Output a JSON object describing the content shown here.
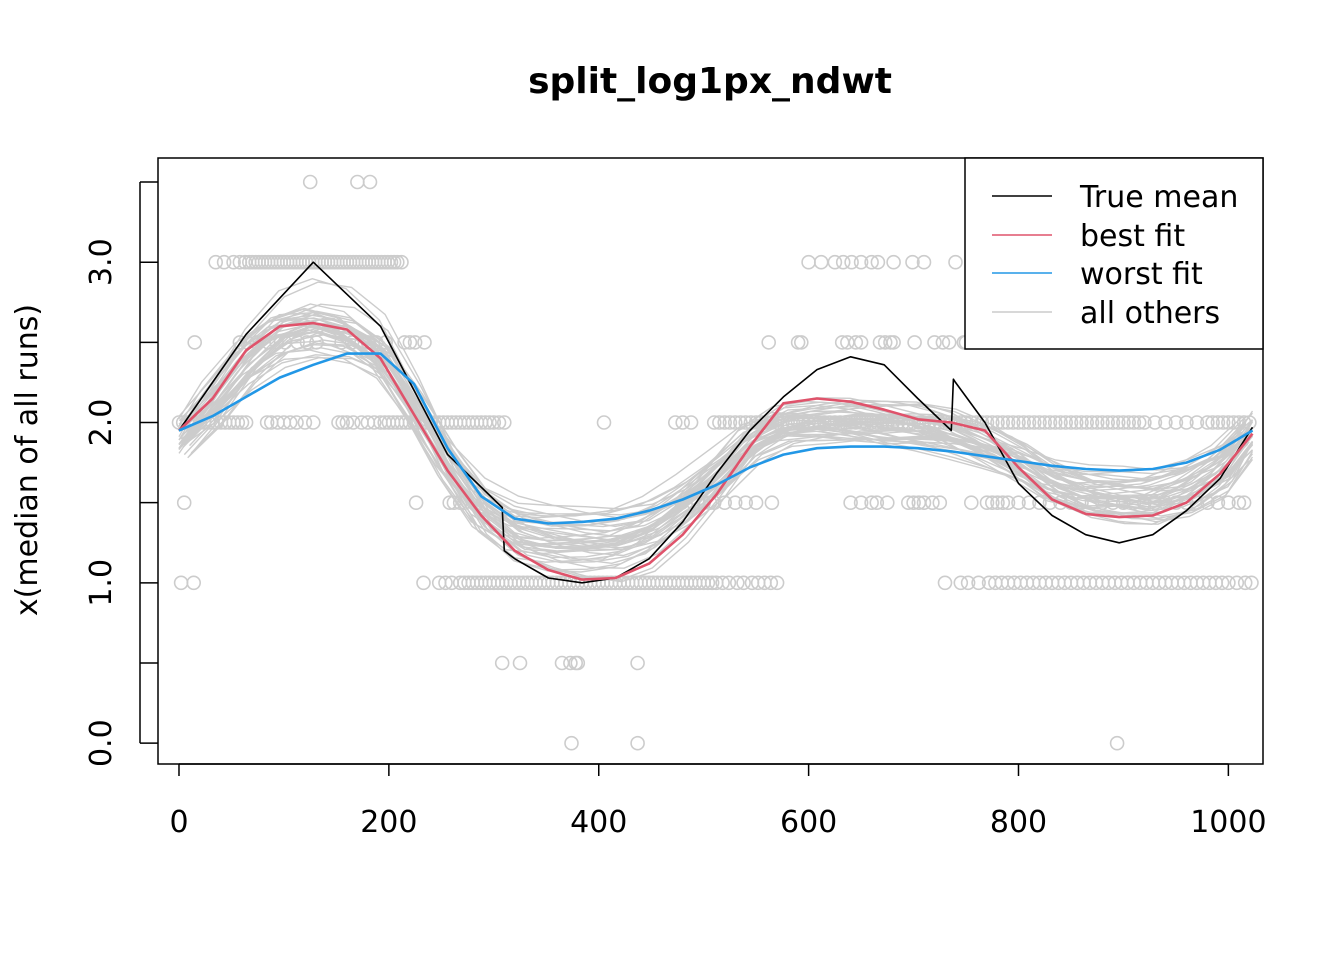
{
  "chart_data": {
    "type": "line",
    "title": "split_log1px_ndwt",
    "xlabel": "",
    "ylabel": "x(median of all runs)",
    "xlim": [
      -20,
      1033
    ],
    "ylim": [
      -0.13,
      3.65
    ],
    "xticks": [
      0,
      200,
      400,
      600,
      800,
      1000
    ],
    "xtick_labels": [
      "0",
      "200",
      "400",
      "600",
      "800",
      "1000"
    ],
    "yticks": [
      0,
      0.5,
      1,
      1.5,
      2,
      2.5,
      3,
      3.5
    ],
    "ytick_labels": [
      "0.0",
      "",
      "1.0",
      "",
      "2.0",
      "",
      "3.0",
      ""
    ],
    "grid": false,
    "legend_position": "top-right",
    "legend": [
      {
        "label": "True mean",
        "color": "#000000"
      },
      {
        "label": "best fit",
        "color": "#DF536B"
      },
      {
        "label": "worst fit",
        "color": "#2297E6"
      },
      {
        "label": "all others",
        "color": "#CCCCCC"
      }
    ],
    "colors": {
      "true_mean": "#000000",
      "best": "#DF536B",
      "worst": "#2297E6",
      "others": "#CCCCCC",
      "points": "#CCCCCC"
    },
    "series": [
      {
        "name": "True mean",
        "color": "#000000",
        "x": [
          0,
          64,
          128,
          192,
          256,
          308,
          310,
          320,
          352,
          384,
          416,
          448,
          480,
          512,
          544,
          576,
          608,
          640,
          672,
          704,
          736,
          738,
          740,
          768,
          800,
          832,
          864,
          896,
          928,
          960,
          992,
          1023
        ],
        "y": [
          1.95,
          2.55,
          3.0,
          2.6,
          1.8,
          1.47,
          1.2,
          1.15,
          1.03,
          1.0,
          1.03,
          1.15,
          1.38,
          1.68,
          1.95,
          2.16,
          2.33,
          2.41,
          2.36,
          2.15,
          1.95,
          2.27,
          2.25,
          2.0,
          1.62,
          1.42,
          1.3,
          1.25,
          1.3,
          1.45,
          1.65,
          1.97
        ]
      },
      {
        "name": "best fit",
        "color": "#DF536B",
        "x": [
          0,
          32,
          64,
          96,
          128,
          160,
          192,
          224,
          256,
          288,
          320,
          352,
          384,
          416,
          448,
          480,
          512,
          544,
          576,
          608,
          640,
          672,
          704,
          736,
          768,
          800,
          832,
          864,
          896,
          928,
          960,
          992,
          1023
        ],
        "y": [
          1.95,
          2.15,
          2.45,
          2.6,
          2.62,
          2.58,
          2.4,
          2.05,
          1.7,
          1.42,
          1.2,
          1.08,
          1.02,
          1.03,
          1.12,
          1.3,
          1.55,
          1.85,
          2.12,
          2.15,
          2.13,
          2.08,
          2.02,
          2.0,
          1.95,
          1.72,
          1.52,
          1.43,
          1.41,
          1.42,
          1.5,
          1.68,
          1.93
        ]
      },
      {
        "name": "worst fit",
        "color": "#2297E6",
        "x": [
          0,
          32,
          64,
          96,
          128,
          160,
          192,
          224,
          256,
          288,
          320,
          352,
          384,
          416,
          448,
          480,
          512,
          544,
          576,
          608,
          640,
          672,
          704,
          736,
          768,
          800,
          832,
          864,
          896,
          928,
          960,
          992,
          1023
        ],
        "y": [
          1.95,
          2.04,
          2.16,
          2.28,
          2.36,
          2.43,
          2.43,
          2.24,
          1.84,
          1.54,
          1.4,
          1.37,
          1.38,
          1.4,
          1.45,
          1.52,
          1.61,
          1.72,
          1.8,
          1.84,
          1.85,
          1.85,
          1.84,
          1.82,
          1.79,
          1.76,
          1.73,
          1.71,
          1.7,
          1.71,
          1.75,
          1.83,
          1.95
        ]
      }
    ],
    "others": {
      "count": 45,
      "x": [
        0,
        32,
        64,
        96,
        128,
        160,
        192,
        224,
        256,
        288,
        320,
        352,
        384,
        416,
        448,
        480,
        512,
        544,
        576,
        608,
        640,
        672,
        704,
        736,
        768,
        800,
        832,
        864,
        896,
        928,
        960,
        992,
        1023
      ],
      "base_y": [
        1.92,
        2.15,
        2.42,
        2.6,
        2.65,
        2.6,
        2.45,
        2.12,
        1.75,
        1.45,
        1.3,
        1.25,
        1.23,
        1.23,
        1.3,
        1.45,
        1.65,
        1.88,
        2.0,
        2.02,
        2.02,
        2.0,
        1.98,
        1.93,
        1.85,
        1.75,
        1.62,
        1.55,
        1.53,
        1.52,
        1.58,
        1.7,
        1.92
      ]
    },
    "points": [
      {
        "y": 3.5,
        "x": [
          125,
          170,
          182
        ]
      },
      {
        "y": 3.0,
        "x": [
          35,
          43,
          52,
          58,
          63,
          67,
          70,
          73,
          76,
          79,
          82,
          85,
          88,
          91,
          94,
          97,
          100,
          103,
          106,
          109,
          112,
          115,
          118,
          121,
          124,
          127,
          130,
          133,
          136,
          139,
          142,
          145,
          148,
          151,
          154,
          157,
          160,
          163,
          166,
          169,
          172,
          175,
          178,
          181,
          184,
          187,
          190,
          193,
          196,
          199,
          202,
          205,
          208,
          212,
          600,
          612,
          625,
          633,
          641,
          650,
          660,
          666,
          681,
          699,
          710,
          740,
          758,
          778,
          800,
          808,
          818,
          828,
          838,
          843,
          848,
          858,
          868,
          876,
          880,
          893,
          910,
          937,
          941,
          951
        ]
      },
      {
        "y": 2.5,
        "x": [
          15,
          58,
          65,
          74,
          85,
          93,
          101,
          113,
          122,
          131,
          155,
          165,
          174,
          180,
          188,
          197,
          215,
          220,
          225,
          234,
          562,
          590,
          593,
          632,
          637,
          645,
          650,
          668,
          673,
          678,
          681,
          701,
          720,
          728,
          734,
          748,
          750
        ]
      },
      {
        "y": 2.0,
        "x": [
          0,
          4,
          8,
          12,
          16,
          20,
          24,
          28,
          32,
          36,
          40,
          44,
          48,
          52,
          56,
          60,
          64,
          84,
          88,
          94,
          100,
          106,
          112,
          120,
          128,
          152,
          156,
          160,
          166,
          174,
          180,
          186,
          192,
          196,
          200,
          204,
          208,
          212,
          216,
          220,
          224,
          228,
          232,
          236,
          240,
          244,
          248,
          252,
          256,
          260,
          264,
          268,
          272,
          276,
          280,
          284,
          288,
          292,
          296,
          300,
          305,
          310,
          405,
          473,
          480,
          488,
          510,
          515,
          520,
          525,
          530,
          535,
          540,
          545,
          550,
          555,
          560,
          565,
          570,
          575,
          580,
          585,
          590,
          595,
          600,
          605,
          610,
          615,
          620,
          625,
          630,
          635,
          640,
          645,
          650,
          655,
          660,
          665,
          670,
          675,
          680,
          685,
          690,
          695,
          700,
          705,
          710,
          715,
          720,
          725,
          730,
          735,
          740,
          745,
          750,
          755,
          760,
          765,
          770,
          775,
          780,
          785,
          790,
          795,
          800,
          805,
          810,
          815,
          820,
          825,
          830,
          835,
          840,
          845,
          850,
          855,
          860,
          865,
          870,
          875,
          880,
          885,
          890,
          895,
          900,
          905,
          910,
          915,
          920,
          930,
          940,
          950,
          960,
          970,
          980,
          985,
          990,
          995,
          1000,
          1005,
          1010,
          1015,
          1020
        ]
      },
      {
        "y": 1.5,
        "x": [
          5,
          226,
          258,
          262,
          268,
          272,
          479,
          490,
          495,
          500,
          506,
          510,
          520,
          530,
          540,
          550,
          565,
          640,
          650,
          660,
          665,
          675,
          695,
          700,
          705,
          710,
          718,
          725,
          755,
          770,
          775,
          780,
          785,
          790,
          800,
          810,
          820,
          830,
          840,
          850,
          860,
          870,
          880,
          890,
          900,
          910,
          920,
          930,
          940,
          950,
          960,
          970,
          980,
          990,
          1000,
          1010,
          1015
        ]
      },
      {
        "y": 1.0,
        "x": [
          2,
          14,
          233,
          248,
          254,
          260,
          268,
          272,
          276,
          280,
          284,
          288,
          292,
          296,
          300,
          304,
          308,
          312,
          316,
          320,
          324,
          328,
          332,
          336,
          340,
          344,
          348,
          352,
          356,
          360,
          364,
          368,
          372,
          376,
          380,
          384,
          388,
          392,
          396,
          400,
          404,
          408,
          412,
          416,
          420,
          424,
          428,
          432,
          436,
          440,
          444,
          448,
          452,
          456,
          460,
          464,
          468,
          472,
          476,
          480,
          484,
          488,
          492,
          496,
          500,
          504,
          508,
          512,
          518,
          524,
          532,
          538,
          546,
          552,
          558,
          564,
          570,
          730,
          745,
          752,
          762,
          772,
          778,
          784,
          790,
          796,
          802,
          808,
          814,
          820,
          826,
          832,
          838,
          844,
          850,
          856,
          862,
          868,
          874,
          880,
          886,
          892,
          898,
          904,
          910,
          916,
          922,
          928,
          934,
          940,
          946,
          952,
          958,
          964,
          970,
          976,
          982,
          988,
          994,
          1000,
          1008,
          1016,
          1022
        ]
      },
      {
        "y": 0.5,
        "x": [
          308,
          325,
          365,
          373,
          378,
          380,
          437
        ]
      },
      {
        "y": 0.0,
        "x": [
          374,
          437,
          894
        ]
      }
    ]
  }
}
